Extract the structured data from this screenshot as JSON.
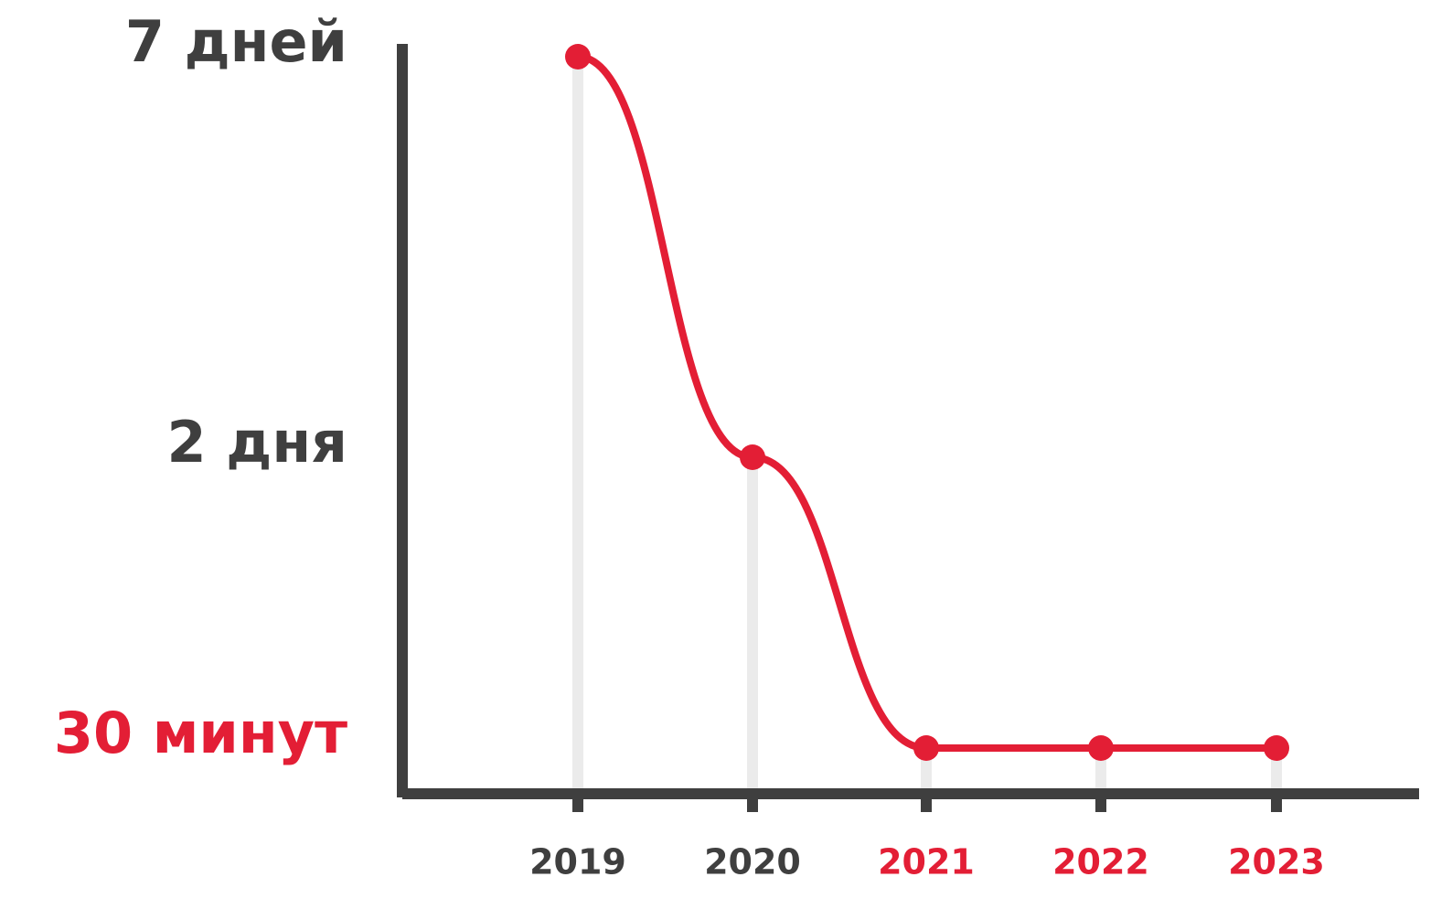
{
  "chart_data": {
    "type": "line",
    "categories": [
      "2019",
      "2020",
      "2021",
      "2022",
      "2023"
    ],
    "category_colors": [
      "#3f3f3f",
      "#3f3f3f",
      "#e31e35",
      "#e31e35",
      "#e31e35"
    ],
    "series": [
      {
        "color": "#e31e35",
        "values": [
          10080,
          2880,
          30,
          30,
          30
        ]
      }
    ],
    "ylim": [
      0,
      10080
    ],
    "yticks": [
      {
        "value": 30,
        "label": "30 минут"
      },
      {
        "value": 2880,
        "label": "2 дня"
      },
      {
        "value": 10080,
        "label": "7 дней"
      }
    ],
    "ytick_colors": [
      "#e31e35",
      "#3f3f3f",
      "#3f3f3f"
    ],
    "grid": true
  }
}
